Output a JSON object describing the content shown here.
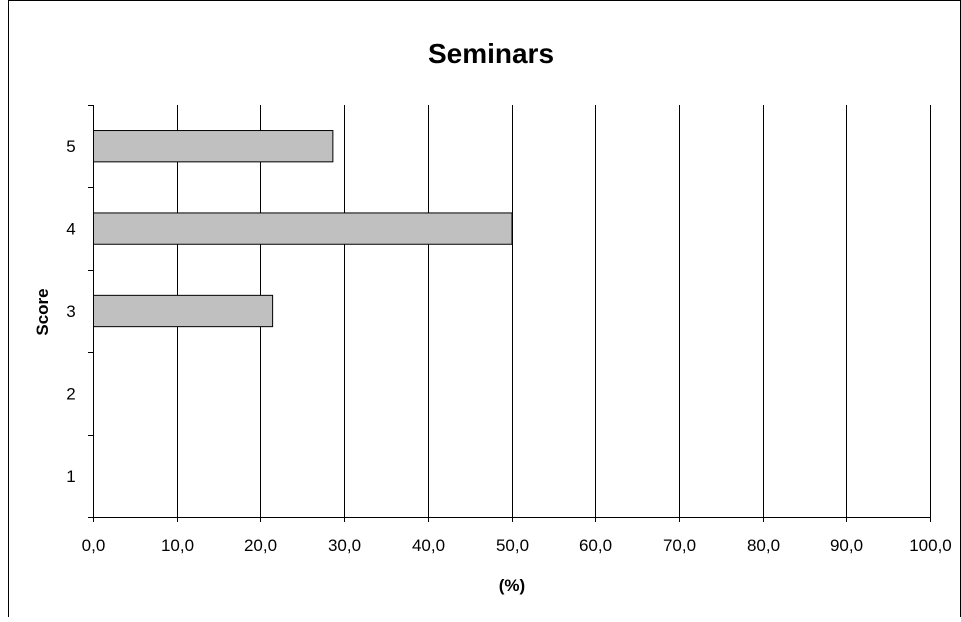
{
  "chart_data": {
    "type": "bar",
    "orientation": "horizontal",
    "title": "Seminars",
    "xlabel": "(%)",
    "ylabel": "Score",
    "categories": [
      "1",
      "2",
      "3",
      "4",
      "5"
    ],
    "values": [
      0,
      0,
      21.4,
      50.0,
      28.6
    ],
    "xlim": [
      0,
      100
    ],
    "xticks": [
      "0,0",
      "10,0",
      "20,0",
      "30,0",
      "40,0",
      "50,0",
      "60,0",
      "70,0",
      "80,0",
      "90,0",
      "100,0"
    ],
    "grid": "vertical",
    "legend": "none",
    "bar_color": "#c0c0c0",
    "bar_edge_color": "#000000"
  }
}
